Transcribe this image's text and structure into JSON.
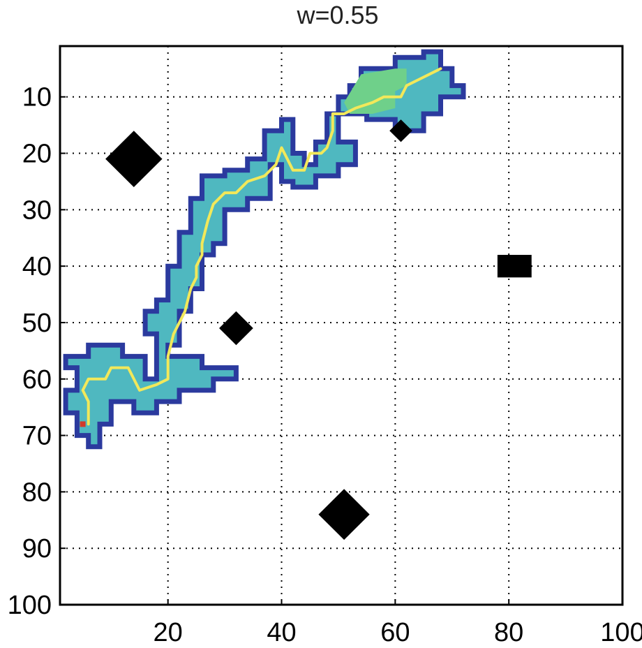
{
  "chart_data": {
    "type": "heatmap",
    "title": "w=0.55",
    "xlabel": "",
    "ylabel": "",
    "xlim": [
      1,
      100
    ],
    "ylim": [
      1,
      100
    ],
    "y_reversed": true,
    "grid": true,
    "x_ticks": [
      20,
      40,
      60,
      80,
      100
    ],
    "y_ticks": [
      10,
      20,
      30,
      40,
      50,
      60,
      70,
      80,
      90,
      100
    ],
    "colors": {
      "outline": "#2b3a9e",
      "cell_fill": "#4fb8c0",
      "high_fill": "#6fd08a",
      "path": "#f2e85a",
      "end_point": "#d23a2a",
      "obstacle": "#000000"
    },
    "explored_region_outline": [
      [
        65,
        2
      ],
      [
        68,
        2
      ],
      [
        68,
        5
      ],
      [
        70,
        5
      ],
      [
        70,
        8
      ],
      [
        72,
        8
      ],
      [
        72,
        10
      ],
      [
        68,
        10
      ],
      [
        68,
        13
      ],
      [
        65,
        13
      ],
      [
        65,
        16
      ],
      [
        60,
        16
      ],
      [
        60,
        14
      ],
      [
        55,
        14
      ],
      [
        55,
        13
      ],
      [
        50,
        13
      ],
      [
        50,
        18
      ],
      [
        53,
        18
      ],
      [
        53,
        22
      ],
      [
        50,
        22
      ],
      [
        50,
        24
      ],
      [
        46,
        24
      ],
      [
        46,
        26
      ],
      [
        42,
        26
      ],
      [
        42,
        25
      ],
      [
        40,
        25
      ],
      [
        40,
        22
      ],
      [
        38,
        22
      ],
      [
        38,
        28
      ],
      [
        34,
        28
      ],
      [
        34,
        30
      ],
      [
        30,
        30
      ],
      [
        30,
        36
      ],
      [
        28,
        36
      ],
      [
        28,
        38
      ],
      [
        26,
        38
      ],
      [
        26,
        44
      ],
      [
        24,
        44
      ],
      [
        24,
        48
      ],
      [
        22,
        48
      ],
      [
        22,
        54
      ],
      [
        20,
        54
      ],
      [
        20,
        56
      ],
      [
        26,
        56
      ],
      [
        26,
        58
      ],
      [
        32,
        58
      ],
      [
        32,
        60
      ],
      [
        28,
        60
      ],
      [
        28,
        62
      ],
      [
        22,
        62
      ],
      [
        22,
        64
      ],
      [
        18,
        64
      ],
      [
        18,
        66
      ],
      [
        14,
        66
      ],
      [
        14,
        64
      ],
      [
        10,
        64
      ],
      [
        10,
        68
      ],
      [
        8,
        68
      ],
      [
        8,
        72
      ],
      [
        6,
        72
      ],
      [
        6,
        70
      ],
      [
        4,
        70
      ],
      [
        4,
        66
      ],
      [
        2,
        66
      ],
      [
        2,
        62
      ],
      [
        4,
        62
      ],
      [
        4,
        58
      ],
      [
        2,
        58
      ],
      [
        2,
        56
      ],
      [
        6,
        56
      ],
      [
        6,
        54
      ],
      [
        12,
        54
      ],
      [
        12,
        56
      ],
      [
        16,
        56
      ],
      [
        16,
        60
      ],
      [
        18,
        60
      ],
      [
        18,
        52
      ],
      [
        16,
        52
      ],
      [
        16,
        48
      ],
      [
        18,
        48
      ],
      [
        18,
        46
      ],
      [
        20,
        46
      ],
      [
        20,
        40
      ],
      [
        22,
        40
      ],
      [
        22,
        34
      ],
      [
        24,
        34
      ],
      [
        24,
        28
      ],
      [
        26,
        28
      ],
      [
        26,
        24
      ],
      [
        30,
        24
      ],
      [
        30,
        23
      ],
      [
        34,
        23
      ],
      [
        34,
        21
      ],
      [
        37,
        21
      ],
      [
        37,
        16
      ],
      [
        40,
        16
      ],
      [
        40,
        14
      ],
      [
        42,
        14
      ],
      [
        42,
        20
      ],
      [
        44,
        20
      ],
      [
        44,
        22
      ],
      [
        46,
        22
      ],
      [
        46,
        18
      ],
      [
        48,
        18
      ],
      [
        48,
        13
      ],
      [
        50,
        13
      ],
      [
        50,
        10
      ],
      [
        52,
        10
      ],
      [
        52,
        8
      ],
      [
        54,
        8
      ],
      [
        54,
        5
      ],
      [
        60,
        5
      ],
      [
        60,
        3
      ],
      [
        65,
        3
      ]
    ],
    "high_value_region": [
      [
        54,
        6
      ],
      [
        60,
        5
      ],
      [
        62,
        5
      ],
      [
        62,
        8
      ],
      [
        60,
        9
      ],
      [
        60,
        12
      ],
      [
        56,
        13
      ],
      [
        52,
        13
      ],
      [
        51,
        11
      ]
    ],
    "path": [
      [
        6,
        68
      ],
      [
        6,
        64
      ],
      [
        5,
        62
      ],
      [
        6,
        60
      ],
      [
        9,
        60
      ],
      [
        10,
        58
      ],
      [
        13,
        58
      ],
      [
        15,
        62
      ],
      [
        18,
        61
      ],
      [
        20,
        60
      ],
      [
        20,
        56
      ],
      [
        21,
        52
      ],
      [
        22,
        50
      ],
      [
        23,
        48
      ],
      [
        24,
        44
      ],
      [
        25,
        42
      ],
      [
        25,
        40
      ],
      [
        26,
        38
      ],
      [
        26,
        36
      ],
      [
        27,
        32
      ],
      [
        28,
        29
      ],
      [
        30,
        27
      ],
      [
        32,
        27
      ],
      [
        34,
        25
      ],
      [
        37,
        24
      ],
      [
        39,
        22
      ],
      [
        40,
        19
      ],
      [
        41,
        21
      ],
      [
        42,
        23
      ],
      [
        44,
        23
      ],
      [
        45,
        20
      ],
      [
        47,
        20
      ],
      [
        48,
        19
      ],
      [
        49,
        16
      ],
      [
        49,
        13
      ],
      [
        51,
        13
      ],
      [
        53,
        12
      ],
      [
        56,
        11
      ],
      [
        58,
        10
      ],
      [
        61,
        10
      ],
      [
        62,
        8
      ],
      [
        64,
        7
      ],
      [
        66,
        6
      ],
      [
        68,
        5
      ]
    ],
    "end_point": [
      5,
      68
    ],
    "obstacles": [
      {
        "shape": "diamond",
        "center": [
          14,
          21
        ],
        "radius": 5
      },
      {
        "shape": "diamond",
        "center": [
          61,
          16
        ],
        "radius": 2
      },
      {
        "shape": "diamond",
        "center": [
          32,
          51
        ],
        "radius": 3
      },
      {
        "shape": "diamond",
        "center": [
          51,
          84
        ],
        "radius": 4.5
      },
      {
        "shape": "rect",
        "x_range": [
          78,
          84
        ],
        "y_range": [
          38,
          42
        ]
      }
    ]
  }
}
